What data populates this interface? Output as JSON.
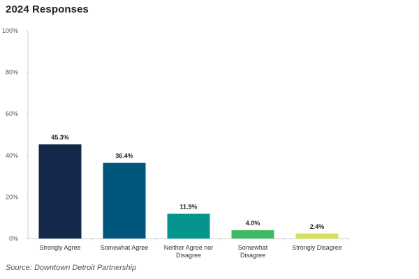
{
  "title": "2024 Responses",
  "source": "Source: Downtown Detroit Partnership",
  "chart_data": {
    "type": "bar",
    "title": "2024 Responses",
    "xlabel": "",
    "ylabel": "",
    "ylim": [
      0,
      100
    ],
    "y_ticks": [
      "0%",
      "20%",
      "40%",
      "60%",
      "80%",
      "100%"
    ],
    "y_tick_values": [
      0,
      20,
      40,
      60,
      80,
      100
    ],
    "grid": false,
    "legend": "none",
    "categories": [
      [
        "Strongly Agree"
      ],
      [
        "Somewhat Agree"
      ],
      [
        "Neither Agree nor",
        "Disagree"
      ],
      [
        "Somewhat",
        "Disagree"
      ],
      [
        "Strongly Disagree"
      ]
    ],
    "values": [
      45.3,
      36.4,
      11.9,
      4.0,
      2.4
    ],
    "data_labels": [
      "45.3%",
      "36.4%",
      "11.9%",
      "4.0%",
      "2.4%"
    ],
    "colors": [
      "#13284b",
      "#01567b",
      "#06948f",
      "#3fba66",
      "#d6e157"
    ]
  }
}
